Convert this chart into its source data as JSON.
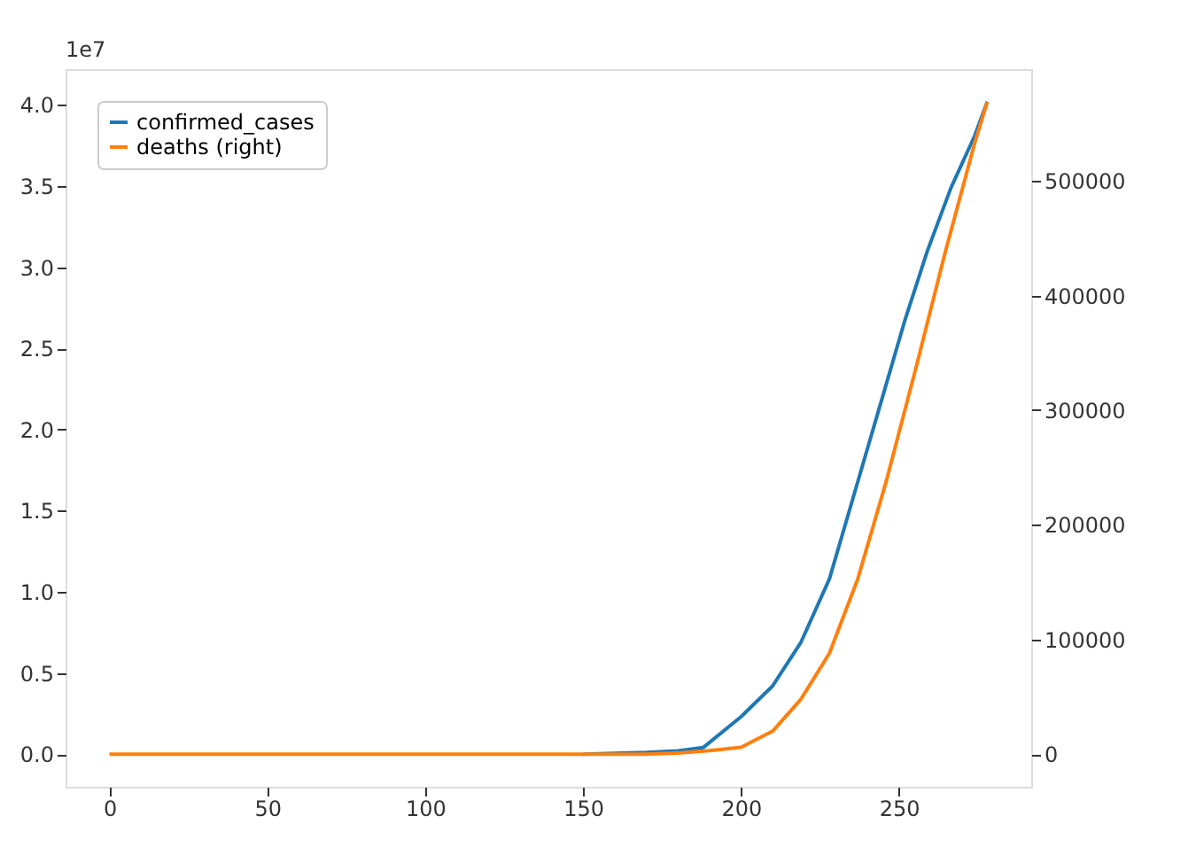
{
  "chart_data": {
    "type": "line",
    "annotations": [
      "1e7"
    ],
    "xlim": [
      -13.9,
      291.9
    ],
    "xticks": [
      0,
      50,
      100,
      150,
      200,
      250
    ],
    "ylim": [
      -0.201,
      4.221
    ],
    "yticks": [
      {
        "value": 0,
        "label": "0.0"
      },
      0.5,
      {
        "value": 1,
        "label": "1.0"
      },
      1.5,
      {
        "value": 2,
        "label": "2.0"
      },
      2.5,
      {
        "value": 3,
        "label": "3.0"
      },
      3.5,
      {
        "value": 4,
        "label": "4.0"
      }
    ],
    "y2lim": [
      -28450,
      597450
    ],
    "y2ticks": [
      0,
      100000,
      200000,
      300000,
      400000,
      500000
    ],
    "grid": false,
    "legend": "top left",
    "marker": "none",
    "line_style": "solid",
    "series": [
      {
        "name": "confirmed_cases",
        "color": "#1f77b4",
        "x": [
          150,
          170,
          180,
          188,
          200,
          210,
          219,
          228,
          237,
          244.5,
          252,
          259,
          266.5,
          274,
          278
        ],
        "values": [
          0,
          0.01,
          0.02,
          0.04,
          0.23,
          0.42,
          0.69,
          1.08,
          1.68,
          2.18,
          2.68,
          3.1,
          3.49,
          3.81,
          4.02
        ]
      },
      {
        "name": "deaths (right)",
        "color": "#ff7f0e",
        "axis": "y2",
        "x": [
          0,
          50,
          100,
          150,
          170,
          180,
          190,
          200,
          210,
          219,
          228,
          237,
          246,
          255.5,
          264.7,
          274,
          278
        ],
        "values": [
          0,
          0,
          0,
          0,
          0,
          1000,
          3000,
          6000,
          20000,
          48000,
          88000,
          153000,
          238000,
          338000,
          438000,
          533000,
          569000
        ]
      }
    ]
  }
}
